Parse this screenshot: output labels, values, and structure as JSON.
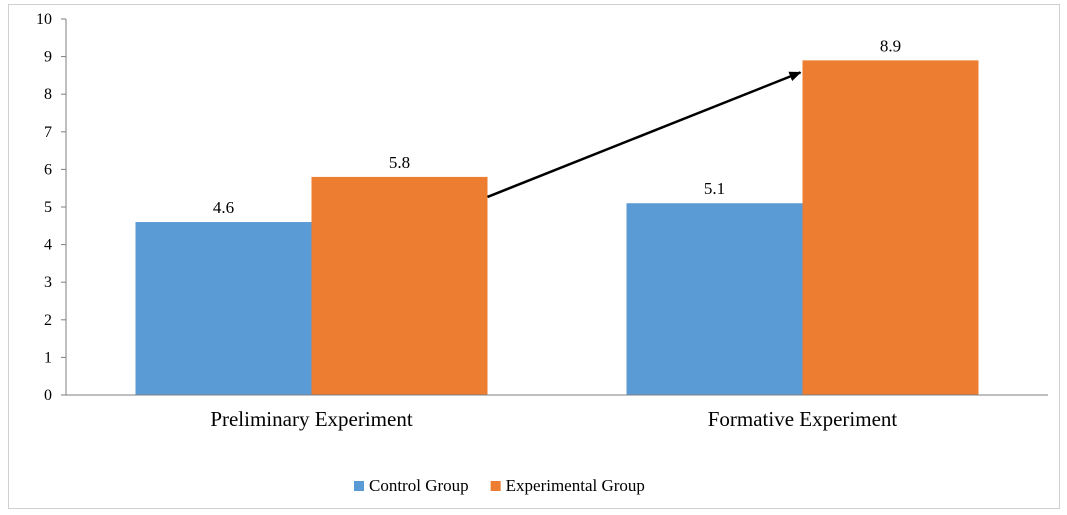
{
  "chart_data": {
    "type": "bar",
    "categories": [
      "Preliminary Experiment",
      "Formative Experiment"
    ],
    "series": [
      {
        "name": "Control Group",
        "color": "#5B9BD5",
        "values": [
          4.6,
          5.1
        ]
      },
      {
        "name": "Experimental Group",
        "color": "#ED7D31",
        "values": [
          5.8,
          8.9
        ]
      }
    ],
    "ylim": [
      0,
      10
    ],
    "yticks": [
      0,
      1,
      2,
      3,
      4,
      5,
      6,
      7,
      8,
      9,
      10
    ],
    "grid": false,
    "legend": "bottom",
    "annotation": {
      "type": "arrow",
      "from": "Experimental Group, Preliminary Experiment",
      "to": "Experimental Group, Formative Experiment"
    }
  }
}
